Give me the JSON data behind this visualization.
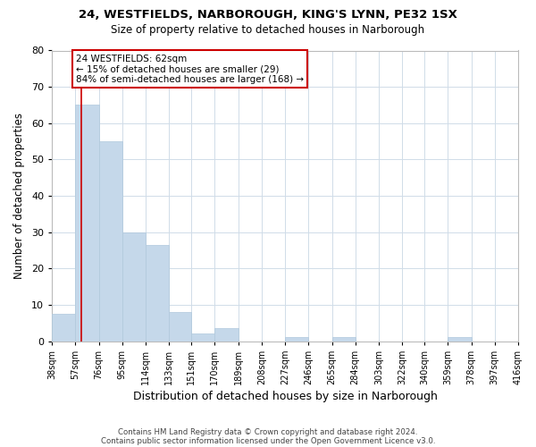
{
  "title1": "24, WESTFIELDS, NARBOROUGH, KING'S LYNN, PE32 1SX",
  "title2": "Size of property relative to detached houses in Narborough",
  "xlabel": "Distribution of detached houses by size in Narborough",
  "ylabel": "Number of detached properties",
  "bar_values": [
    7.5,
    65,
    55,
    30,
    26.5,
    8,
    2,
    3.5,
    0,
    0,
    1,
    0,
    1,
    0,
    0,
    0,
    0,
    1,
    0,
    0
  ],
  "bin_edges": [
    38,
    57,
    76,
    95,
    114,
    133,
    151,
    170,
    189,
    208,
    227,
    246,
    265,
    284,
    303,
    322,
    340,
    359,
    378,
    397,
    416
  ],
  "tick_labels": [
    "38sqm",
    "57sqm",
    "76sqm",
    "95sqm",
    "114sqm",
    "133sqm",
    "151sqm",
    "170sqm",
    "189sqm",
    "208sqm",
    "227sqm",
    "246sqm",
    "265sqm",
    "284sqm",
    "303sqm",
    "322sqm",
    "340sqm",
    "359sqm",
    "378sqm",
    "397sqm",
    "416sqm"
  ],
  "bar_color": "#c5d8ea",
  "bar_edgecolor": "#b0c8dc",
  "ylim": [
    0,
    80
  ],
  "yticks": [
    0,
    10,
    20,
    30,
    40,
    50,
    60,
    70,
    80
  ],
  "red_line_x": 62,
  "annotation_line1": "24 WESTFIELDS: 62sqm",
  "annotation_line2": "← 15% of detached houses are smaller (29)",
  "annotation_line3": "84% of semi-detached houses are larger (168) →",
  "annotation_box_color": "#ffffff",
  "annotation_box_edgecolor": "#cc0000",
  "footer1": "Contains HM Land Registry data © Crown copyright and database right 2024.",
  "footer2": "Contains public sector information licensed under the Open Government Licence v3.0.",
  "background_color": "#ffffff",
  "grid_color": "#d0dce8"
}
